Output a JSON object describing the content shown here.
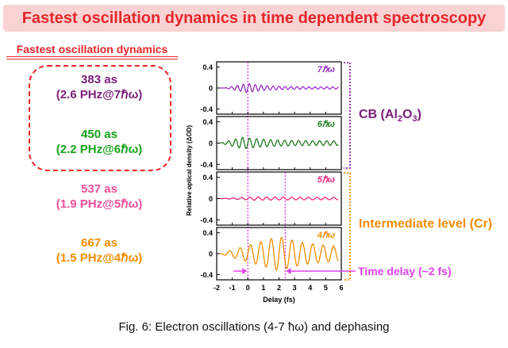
{
  "header": {
    "title": "Fastest oscillation dynamics in time dependent spectroscopy"
  },
  "left_panel": {
    "subtitle": "Fastest oscillation dynamics",
    "entries": [
      {
        "line1": "383 as",
        "line2": "(2.6 PHz@7ℏω)",
        "color": "#7b1e7a"
      },
      {
        "line1": "450 as",
        "line2": "(2.2 PHz@6ℏω)",
        "color": "#18a318"
      },
      {
        "line1": "537 as",
        "line2": "(1.9 PHz@5ℏω)",
        "color": "#ee4f9a"
      },
      {
        "line1": "667 as",
        "line2": "(1.5 PHz@4ℏω)",
        "color": "#f28c00"
      }
    ]
  },
  "labels": {
    "cb_prefix": "CB (Al",
    "cb_sub1": "2",
    "cb_mid": "O",
    "cb_sub2": "3",
    "cb_suffix": ")",
    "intermediate": "Intermediate level (Cr)",
    "time_delay": "Time delay (~2 fs)"
  },
  "caption": "Fig. 6: Electron oscillations (4-7 ħω) and dephasing",
  "chart_data": {
    "type": "line",
    "xlabel": "Delay (fs)",
    "ylabel": "Relative optical density (ΔOD)",
    "xlim": [
      -2,
      6
    ],
    "xticks": [
      "-2",
      "-1",
      "0",
      "1",
      "2",
      "3",
      "4",
      "5",
      "6"
    ],
    "ylim": [
      -0.5,
      0.5
    ],
    "yticks": [
      "0.4",
      "0",
      "-0.4"
    ],
    "markers": {
      "delay_zero": 0,
      "delay_shift": 2.4
    },
    "series": [
      {
        "name": "7ℏω",
        "color": "#9b2fc4",
        "period": 0.383,
        "amplitude": 0.09,
        "start": -1.5,
        "peak": 0.0,
        "decay": 1.1,
        "tail": 0.02
      },
      {
        "name": "6ℏω",
        "color": "#1e7d1e",
        "period": 0.45,
        "amplitude": 0.11,
        "start": -1.8,
        "peak": -0.3,
        "decay": 1.6,
        "tail": 0.04
      },
      {
        "name": "5ℏω",
        "color": "#e8267a",
        "period": 0.537,
        "amplitude": 0.03,
        "start": -1.8,
        "peak": 0.5,
        "decay": 3.0,
        "tail": 0.02
      },
      {
        "name": "4ℏω",
        "color": "#f28c00",
        "period": 0.667,
        "amplitude": 0.33,
        "start": -1.8,
        "peak": 2.0,
        "decay": 2.2,
        "tail": 0.1
      }
    ]
  }
}
